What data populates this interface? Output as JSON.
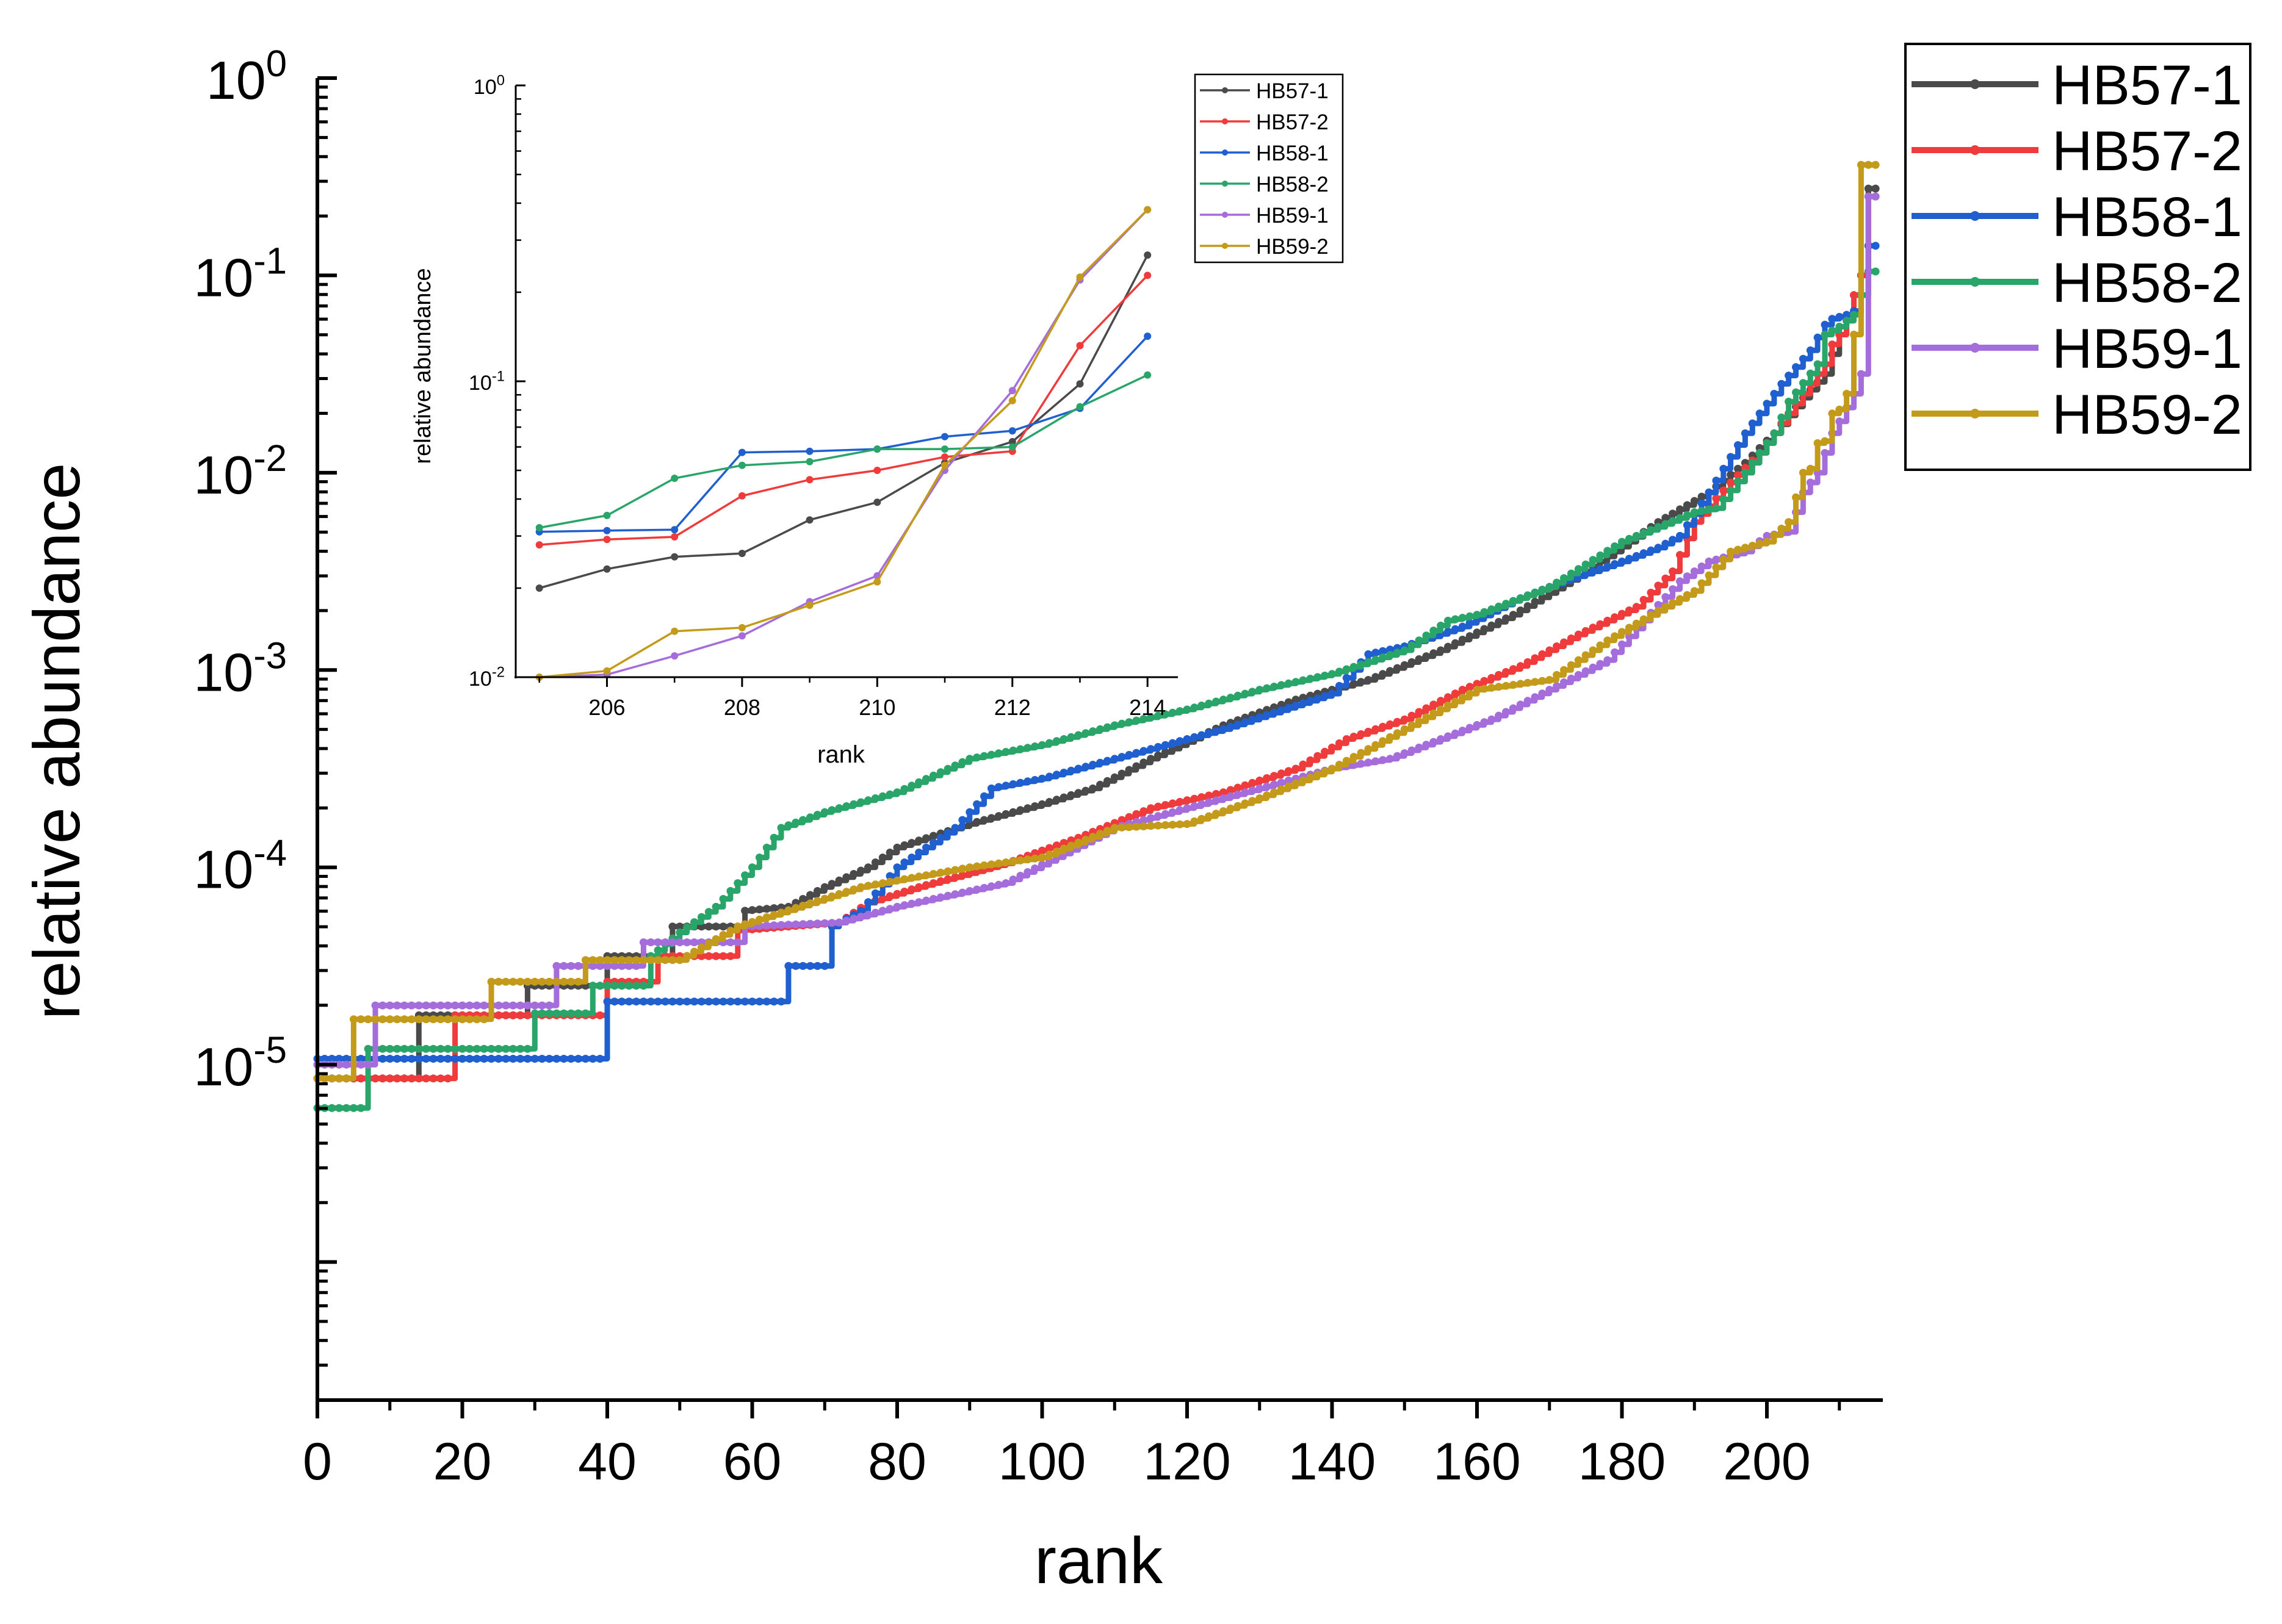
{
  "chart_data": [
    {
      "id": "main",
      "type": "line",
      "title": "",
      "xlabel": "rank",
      "ylabel": "relative abundance",
      "xlim": [
        0,
        216
      ],
      "ylim_log10": [
        -6.7,
        0
      ],
      "yscale": "log",
      "xticks": [
        0,
        20,
        40,
        60,
        80,
        100,
        120,
        140,
        160,
        180,
        200
      ],
      "ytick_exponents": [
        -5,
        -4,
        -3,
        -2,
        -1,
        0
      ],
      "ytick_base": "10",
      "legend_position": "outside-top-right",
      "series": [
        {
          "name": "HB57-1",
          "color": "#4a4a4a",
          "start": 0,
          "end": 215,
          "keypoints": [
            [
              0,
              -5.07
            ],
            [
              13,
              -5.07
            ],
            [
              14,
              -4.75
            ],
            [
              28,
              -4.75
            ],
            [
              29,
              -4.6
            ],
            [
              39,
              -4.6
            ],
            [
              40,
              -4.45
            ],
            [
              48,
              -4.45
            ],
            [
              49,
              -4.3
            ],
            [
              58,
              -4.3
            ],
            [
              59,
              -4.22
            ],
            [
              65,
              -4.2
            ],
            [
              70,
              -4.1
            ],
            [
              76,
              -4.0
            ],
            [
              80,
              -3.9
            ],
            [
              90,
              -3.78
            ],
            [
              100,
              -3.68
            ],
            [
              107,
              -3.6
            ],
            [
              115,
              -3.45
            ],
            [
              125,
              -3.28
            ],
            [
              135,
              -3.15
            ],
            [
              145,
              -3.05
            ],
            [
              155,
              -2.9
            ],
            [
              165,
              -2.72
            ],
            [
              175,
              -2.5
            ],
            [
              185,
              -2.25
            ],
            [
              192,
              -2.1
            ],
            [
              197,
              -1.95
            ],
            [
              201,
              -1.8
            ],
            [
              205,
              -1.62
            ],
            [
              208,
              -1.5
            ],
            [
              209,
              -1.4
            ],
            [
              210,
              -1.3
            ],
            [
              211,
              -1.2
            ],
            [
              212,
              -1.1
            ],
            [
              213,
              -1.0
            ],
            [
              214,
              -0.56
            ],
            [
              215,
              -0.56
            ]
          ]
        },
        {
          "name": "HB57-2",
          "color": "#ef3b3b",
          "start": 0,
          "end": 215,
          "keypoints": [
            [
              0,
              -5.07
            ],
            [
              18,
              -5.07
            ],
            [
              19,
              -4.75
            ],
            [
              39,
              -4.75
            ],
            [
              40,
              -4.58
            ],
            [
              46,
              -4.58
            ],
            [
              47,
              -4.45
            ],
            [
              57,
              -4.45
            ],
            [
              58,
              -4.32
            ],
            [
              72,
              -4.28
            ],
            [
              76,
              -4.18
            ],
            [
              83,
              -4.1
            ],
            [
              95,
              -3.98
            ],
            [
              105,
              -3.85
            ],
            [
              115,
              -3.7
            ],
            [
              125,
              -3.62
            ],
            [
              135,
              -3.5
            ],
            [
              142,
              -3.35
            ],
            [
              150,
              -3.25
            ],
            [
              158,
              -3.1
            ],
            [
              166,
              -2.98
            ],
            [
              174,
              -2.82
            ],
            [
              182,
              -2.68
            ],
            [
              187,
              -2.5
            ],
            [
              190,
              -2.25
            ],
            [
              195,
              -2.05
            ],
            [
              199,
              -1.9
            ],
            [
              203,
              -1.7
            ],
            [
              206,
              -1.55
            ],
            [
              208,
              -1.45
            ],
            [
              209,
              -1.35
            ],
            [
              210,
              -1.3
            ],
            [
              211,
              -1.23
            ],
            [
              212,
              -1.1
            ],
            [
              213,
              -1.0
            ],
            [
              214,
              -0.6
            ],
            [
              215,
              -0.6
            ]
          ]
        },
        {
          "name": "HB58-1",
          "color": "#1f5fcf",
          "start": 0,
          "end": 215,
          "keypoints": [
            [
              0,
              -4.97
            ],
            [
              39,
              -4.97
            ],
            [
              40,
              -4.68
            ],
            [
              64,
              -4.68
            ],
            [
              65,
              -4.5
            ],
            [
              70,
              -4.5
            ],
            [
              71,
              -4.3
            ],
            [
              75,
              -4.22
            ],
            [
              80,
              -4.0
            ],
            [
              88,
              -3.8
            ],
            [
              93,
              -3.6
            ],
            [
              100,
              -3.55
            ],
            [
              110,
              -3.45
            ],
            [
              117,
              -3.38
            ],
            [
              125,
              -3.3
            ],
            [
              135,
              -3.18
            ],
            [
              140,
              -3.12
            ],
            [
              145,
              -2.92
            ],
            [
              150,
              -2.88
            ],
            [
              158,
              -2.78
            ],
            [
              165,
              -2.65
            ],
            [
              172,
              -2.55
            ],
            [
              180,
              -2.45
            ],
            [
              185,
              -2.38
            ],
            [
              188,
              -2.32
            ],
            [
              192,
              -2.1
            ],
            [
              197,
              -1.8
            ],
            [
              202,
              -1.55
            ],
            [
              206,
              -1.38
            ],
            [
              208,
              -1.25
            ],
            [
              209,
              -1.22
            ],
            [
              210,
              -1.21
            ],
            [
              211,
              -1.2
            ],
            [
              212,
              -1.18
            ],
            [
              213,
              -1.1
            ],
            [
              214,
              -0.85
            ],
            [
              215,
              -0.85
            ]
          ]
        },
        {
          "name": "HB58-2",
          "color": "#2aa56a",
          "start": 0,
          "end": 215,
          "keypoints": [
            [
              0,
              -5.22
            ],
            [
              6,
              -5.22
            ],
            [
              7,
              -4.92
            ],
            [
              29,
              -4.92
            ],
            [
              30,
              -4.74
            ],
            [
              37,
              -4.74
            ],
            [
              38,
              -4.6
            ],
            [
              45,
              -4.6
            ],
            [
              46,
              -4.45
            ],
            [
              50,
              -4.33
            ],
            [
              55,
              -4.2
            ],
            [
              60,
              -4.0
            ],
            [
              64,
              -3.8
            ],
            [
              70,
              -3.72
            ],
            [
              80,
              -3.62
            ],
            [
              90,
              -3.45
            ],
            [
              100,
              -3.38
            ],
            [
              110,
              -3.28
            ],
            [
              120,
              -3.2
            ],
            [
              130,
              -3.1
            ],
            [
              140,
              -3.02
            ],
            [
              150,
              -2.9
            ],
            [
              156,
              -2.75
            ],
            [
              160,
              -2.72
            ],
            [
              170,
              -2.58
            ],
            [
              180,
              -2.35
            ],
            [
              190,
              -2.2
            ],
            [
              193,
              -2.18
            ],
            [
              197,
              -2.0
            ],
            [
              201,
              -1.8
            ],
            [
              203,
              -1.64
            ],
            [
              207,
              -1.45
            ],
            [
              208,
              -1.3
            ],
            [
              209,
              -1.28
            ],
            [
              210,
              -1.26
            ],
            [
              211,
              -1.23
            ],
            [
              212,
              -1.2
            ],
            [
              213,
              -1.1
            ],
            [
              214,
              -0.98
            ],
            [
              215,
              -0.98
            ]
          ]
        },
        {
          "name": "HB59-1",
          "color": "#a56ddc",
          "start": 0,
          "end": 215,
          "keypoints": [
            [
              0,
              -5.0
            ],
            [
              7,
              -5.0
            ],
            [
              8,
              -4.7
            ],
            [
              32,
              -4.7
            ],
            [
              33,
              -4.5
            ],
            [
              44,
              -4.5
            ],
            [
              45,
              -4.38
            ],
            [
              58,
              -4.38
            ],
            [
              59,
              -4.3
            ],
            [
              72,
              -4.28
            ],
            [
              80,
              -4.2
            ],
            [
              95,
              -4.08
            ],
            [
              110,
              -3.8
            ],
            [
              120,
              -3.7
            ],
            [
              130,
              -3.6
            ],
            [
              140,
              -3.5
            ],
            [
              148,
              -3.45
            ],
            [
              155,
              -3.35
            ],
            [
              162,
              -3.25
            ],
            [
              170,
              -3.1
            ],
            [
              178,
              -2.95
            ],
            [
              183,
              -2.75
            ],
            [
              188,
              -2.55
            ],
            [
              192,
              -2.45
            ],
            [
              197,
              -2.4
            ],
            [
              200,
              -2.32
            ],
            [
              203,
              -2.3
            ],
            [
              205,
              -2.1
            ],
            [
              206,
              -2.05
            ],
            [
              207,
              -2.0
            ],
            [
              208,
              -1.9
            ],
            [
              209,
              -1.8
            ],
            [
              210,
              -1.74
            ],
            [
              211,
              -1.67
            ],
            [
              212,
              -1.6
            ],
            [
              213,
              -1.5
            ],
            [
              214,
              -0.6
            ],
            [
              215,
              -0.6
            ]
          ]
        },
        {
          "name": "HB59-2",
          "color": "#c49a1a",
          "start": 0,
          "end": 215,
          "keypoints": [
            [
              0,
              -5.07
            ],
            [
              4,
              -5.07
            ],
            [
              5,
              -4.77
            ],
            [
              23,
              -4.77
            ],
            [
              24,
              -4.58
            ],
            [
              36,
              -4.58
            ],
            [
              37,
              -4.47
            ],
            [
              50,
              -4.47
            ],
            [
              58,
              -4.3
            ],
            [
              75,
              -4.1
            ],
            [
              90,
              -4.0
            ],
            [
              100,
              -3.95
            ],
            [
              110,
              -3.8
            ],
            [
              120,
              -3.78
            ],
            [
              130,
              -3.65
            ],
            [
              140,
              -3.5
            ],
            [
              150,
              -3.3
            ],
            [
              155,
              -3.2
            ],
            [
              160,
              -3.1
            ],
            [
              170,
              -3.05
            ],
            [
              178,
              -2.85
            ],
            [
              185,
              -2.7
            ],
            [
              190,
              -2.6
            ],
            [
              195,
              -2.4
            ],
            [
              200,
              -2.35
            ],
            [
              203,
              -2.25
            ],
            [
              205,
              -2.0
            ],
            [
              206,
              -1.98
            ],
            [
              207,
              -1.85
            ],
            [
              208,
              -1.84
            ],
            [
              209,
              -1.7
            ],
            [
              210,
              -1.68
            ],
            [
              211,
              -1.6
            ],
            [
              212,
              -1.3
            ],
            [
              213,
              -0.44
            ],
            [
              214,
              -0.44
            ]
          ]
        }
      ]
    },
    {
      "id": "inset",
      "type": "line",
      "title": "",
      "xlabel": "rank",
      "ylabel": "relative abundance",
      "xlim": [
        204.65,
        214.45
      ],
      "ylim_log10": [
        -2,
        0
      ],
      "yscale": "log",
      "xticks": [
        206,
        208,
        210,
        212,
        214
      ],
      "ytick_exponents": [
        -2,
        -1,
        0
      ],
      "ytick_base": "10",
      "legend_position": "outside-top-right",
      "x": [
        205,
        206,
        207,
        208,
        209,
        210,
        211,
        212,
        213,
        214
      ],
      "series": [
        {
          "name": "HB57-1",
          "color": "#4a4a4a",
          "values": [
            0.02,
            0.0232,
            0.0255,
            0.0262,
            0.034,
            0.039,
            0.053,
            0.0625,
            0.098,
            0.267
          ]
        },
        {
          "name": "HB57-2",
          "color": "#ef3b3b",
          "values": [
            0.028,
            0.0292,
            0.0298,
            0.041,
            0.0465,
            0.05,
            0.0555,
            0.058,
            0.132,
            0.228
          ]
        },
        {
          "name": "HB58-1",
          "color": "#1f5fcf",
          "values": [
            0.031,
            0.0313,
            0.0315,
            0.0575,
            0.058,
            0.059,
            0.065,
            0.068,
            0.081,
            0.142
          ]
        },
        {
          "name": "HB58-2",
          "color": "#2aa56a",
          "values": [
            0.032,
            0.0352,
            0.047,
            0.052,
            0.0535,
            0.059,
            0.059,
            0.06,
            0.082,
            0.105
          ]
        },
        {
          "name": "HB59-1",
          "color": "#a56ddc",
          "values": [
            0.01,
            0.0102,
            0.0118,
            0.0138,
            0.018,
            0.022,
            0.05,
            0.093,
            0.22,
            0.38
          ]
        },
        {
          "name": "HB59-2",
          "color": "#c49a1a",
          "values": [
            0.01,
            0.0105,
            0.0143,
            0.0147,
            0.0175,
            0.021,
            0.052,
            0.086,
            0.225,
            0.38
          ]
        }
      ]
    }
  ]
}
